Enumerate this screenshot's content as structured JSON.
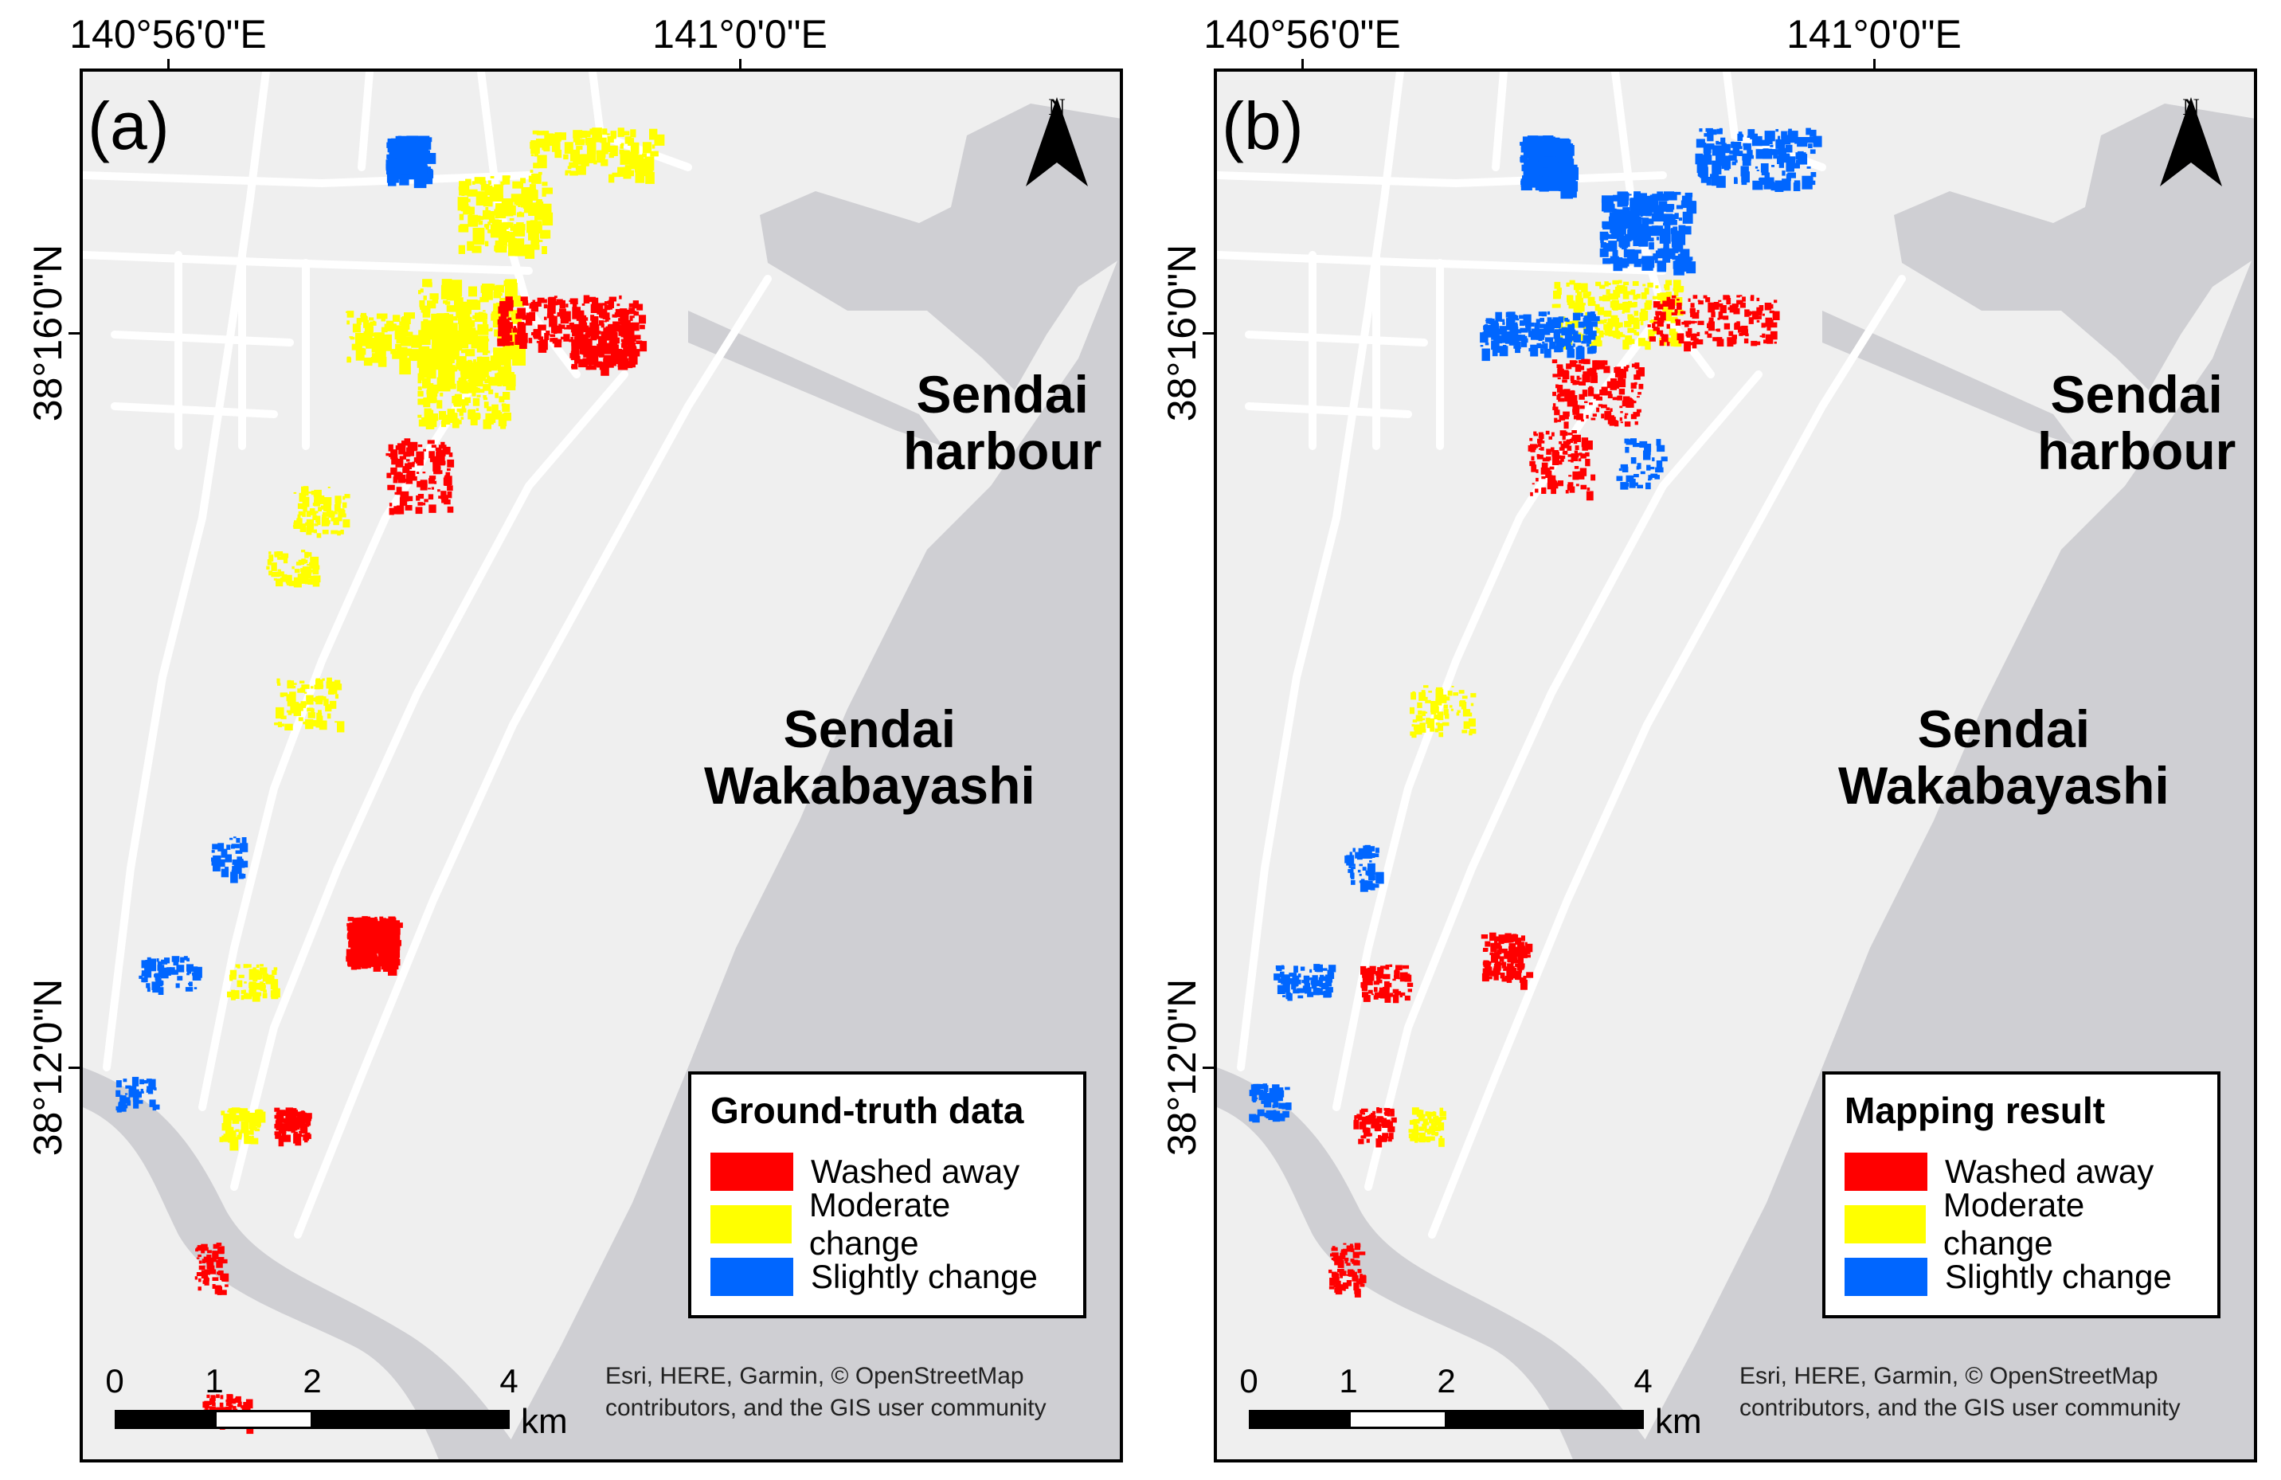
{
  "colors": {
    "washed_away": "#ff0000",
    "moderate_change": "#ffff00",
    "slightly_change": "#0066ff",
    "sea": "#cfcfd3",
    "land": "#efefef",
    "road": "#ffffff"
  },
  "axes": {
    "lon_labels": [
      "140°56'0\"E",
      "141°0'0\"E"
    ],
    "lat_labels": [
      "38°16'0\"N",
      "38°12'0\"N"
    ]
  },
  "places": {
    "harbour": [
      "Sendai",
      "harbour"
    ],
    "wakabayashi": [
      "Sendai",
      "Wakabayashi"
    ]
  },
  "north_arrow": {
    "letter": "N",
    "icon": "north-arrow-icon"
  },
  "scalebar": {
    "ticks": [
      "0",
      "1",
      "2",
      "4"
    ],
    "unit": "km"
  },
  "attribution": "Esri, HERE, Garmin, © OpenStreetMap contributors, and the GIS user community",
  "panels": [
    {
      "label": "(a)",
      "legend": {
        "title": "Ground-truth data",
        "items": [
          {
            "label": "Washed away",
            "color_key": "washed_away"
          },
          {
            "label": "Moderate change",
            "color_key": "moderate_change"
          },
          {
            "label": "Slightly change",
            "color_key": "slightly_change"
          }
        ]
      }
    },
    {
      "label": "(b)",
      "legend": {
        "title": "Mapping result",
        "items": [
          {
            "label": "Washed away",
            "color_key": "washed_away"
          },
          {
            "label": "Moderate change",
            "color_key": "moderate_change"
          },
          {
            "label": "Slightly change",
            "color_key": "slightly_change"
          }
        ]
      }
    }
  ]
}
